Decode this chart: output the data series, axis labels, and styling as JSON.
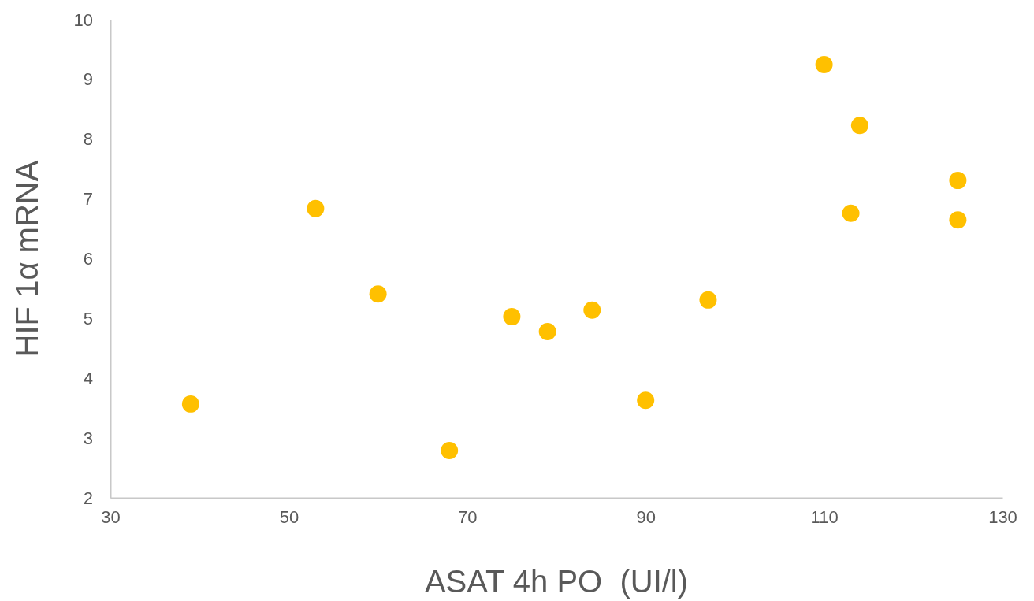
{
  "chart_data": {
    "type": "scatter",
    "xlabel": "ASAT 4h PO  (UI/l)",
    "ylabel": "HIF 1α mRNA",
    "x": [
      39,
      53,
      60,
      68,
      75,
      79,
      84,
      90,
      97,
      110,
      113,
      114,
      125,
      125
    ],
    "series": [
      {
        "color": "#ffc000",
        "values": [
          3.57,
          6.84,
          5.41,
          2.79,
          5.03,
          4.78,
          5.14,
          3.63,
          5.31,
          9.25,
          6.76,
          8.23,
          7.31,
          6.65
        ]
      }
    ],
    "xlim": [
      30,
      130
    ],
    "xticks": [
      30,
      50,
      70,
      90,
      110,
      130
    ],
    "ylim": [
      2,
      10
    ],
    "yticks": [
      2,
      3,
      4,
      5,
      6,
      7,
      8,
      9,
      10
    ],
    "marker": "circle",
    "grid": false
  }
}
